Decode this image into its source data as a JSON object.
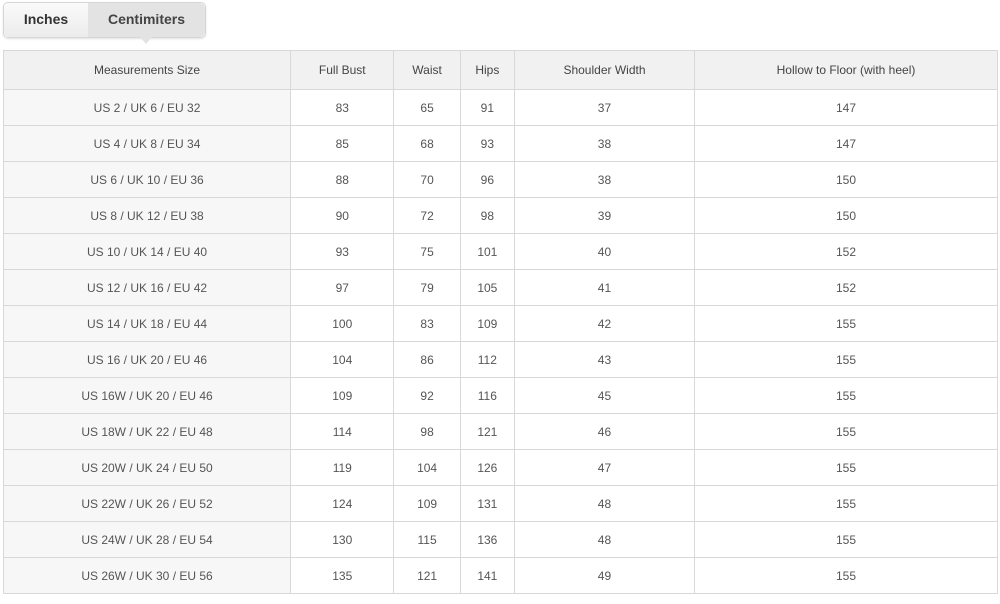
{
  "tabs": [
    {
      "label": "Inches",
      "active": false
    },
    {
      "label": "Centimiters",
      "active": true
    }
  ],
  "table": {
    "headers": [
      "Measurements Size",
      "Full Bust",
      "Waist",
      "Hips",
      "Shoulder Width",
      "Hollow to Floor (with heel)"
    ],
    "rows": [
      [
        "US 2 / UK 6 / EU 32",
        "83",
        "65",
        "91",
        "37",
        "147"
      ],
      [
        "US 4 / UK 8 / EU 34",
        "85",
        "68",
        "93",
        "38",
        "147"
      ],
      [
        "US 6 / UK 10 / EU 36",
        "88",
        "70",
        "96",
        "38",
        "150"
      ],
      [
        "US 8 / UK 12 / EU 38",
        "90",
        "72",
        "98",
        "39",
        "150"
      ],
      [
        "US 10 / UK 14 / EU 40",
        "93",
        "75",
        "101",
        "40",
        "152"
      ],
      [
        "US 12 / UK 16 / EU 42",
        "97",
        "79",
        "105",
        "41",
        "152"
      ],
      [
        "US 14 / UK 18 / EU 44",
        "100",
        "83",
        "109",
        "42",
        "155"
      ],
      [
        "US 16 / UK 20 / EU 46",
        "104",
        "86",
        "112",
        "43",
        "155"
      ],
      [
        "US 16W / UK 20 / EU 46",
        "109",
        "92",
        "116",
        "45",
        "155"
      ],
      [
        "US 18W / UK 22 / EU 48",
        "114",
        "98",
        "121",
        "46",
        "155"
      ],
      [
        "US 20W / UK 24 / EU 50",
        "119",
        "104",
        "126",
        "47",
        "155"
      ],
      [
        "US 22W / UK 26 / EU 52",
        "124",
        "109",
        "131",
        "48",
        "155"
      ],
      [
        "US 24W / UK 28 / EU 54",
        "130",
        "115",
        "136",
        "48",
        "155"
      ],
      [
        "US 26W / UK 30 / EU 56",
        "135",
        "121",
        "141",
        "49",
        "155"
      ]
    ]
  }
}
